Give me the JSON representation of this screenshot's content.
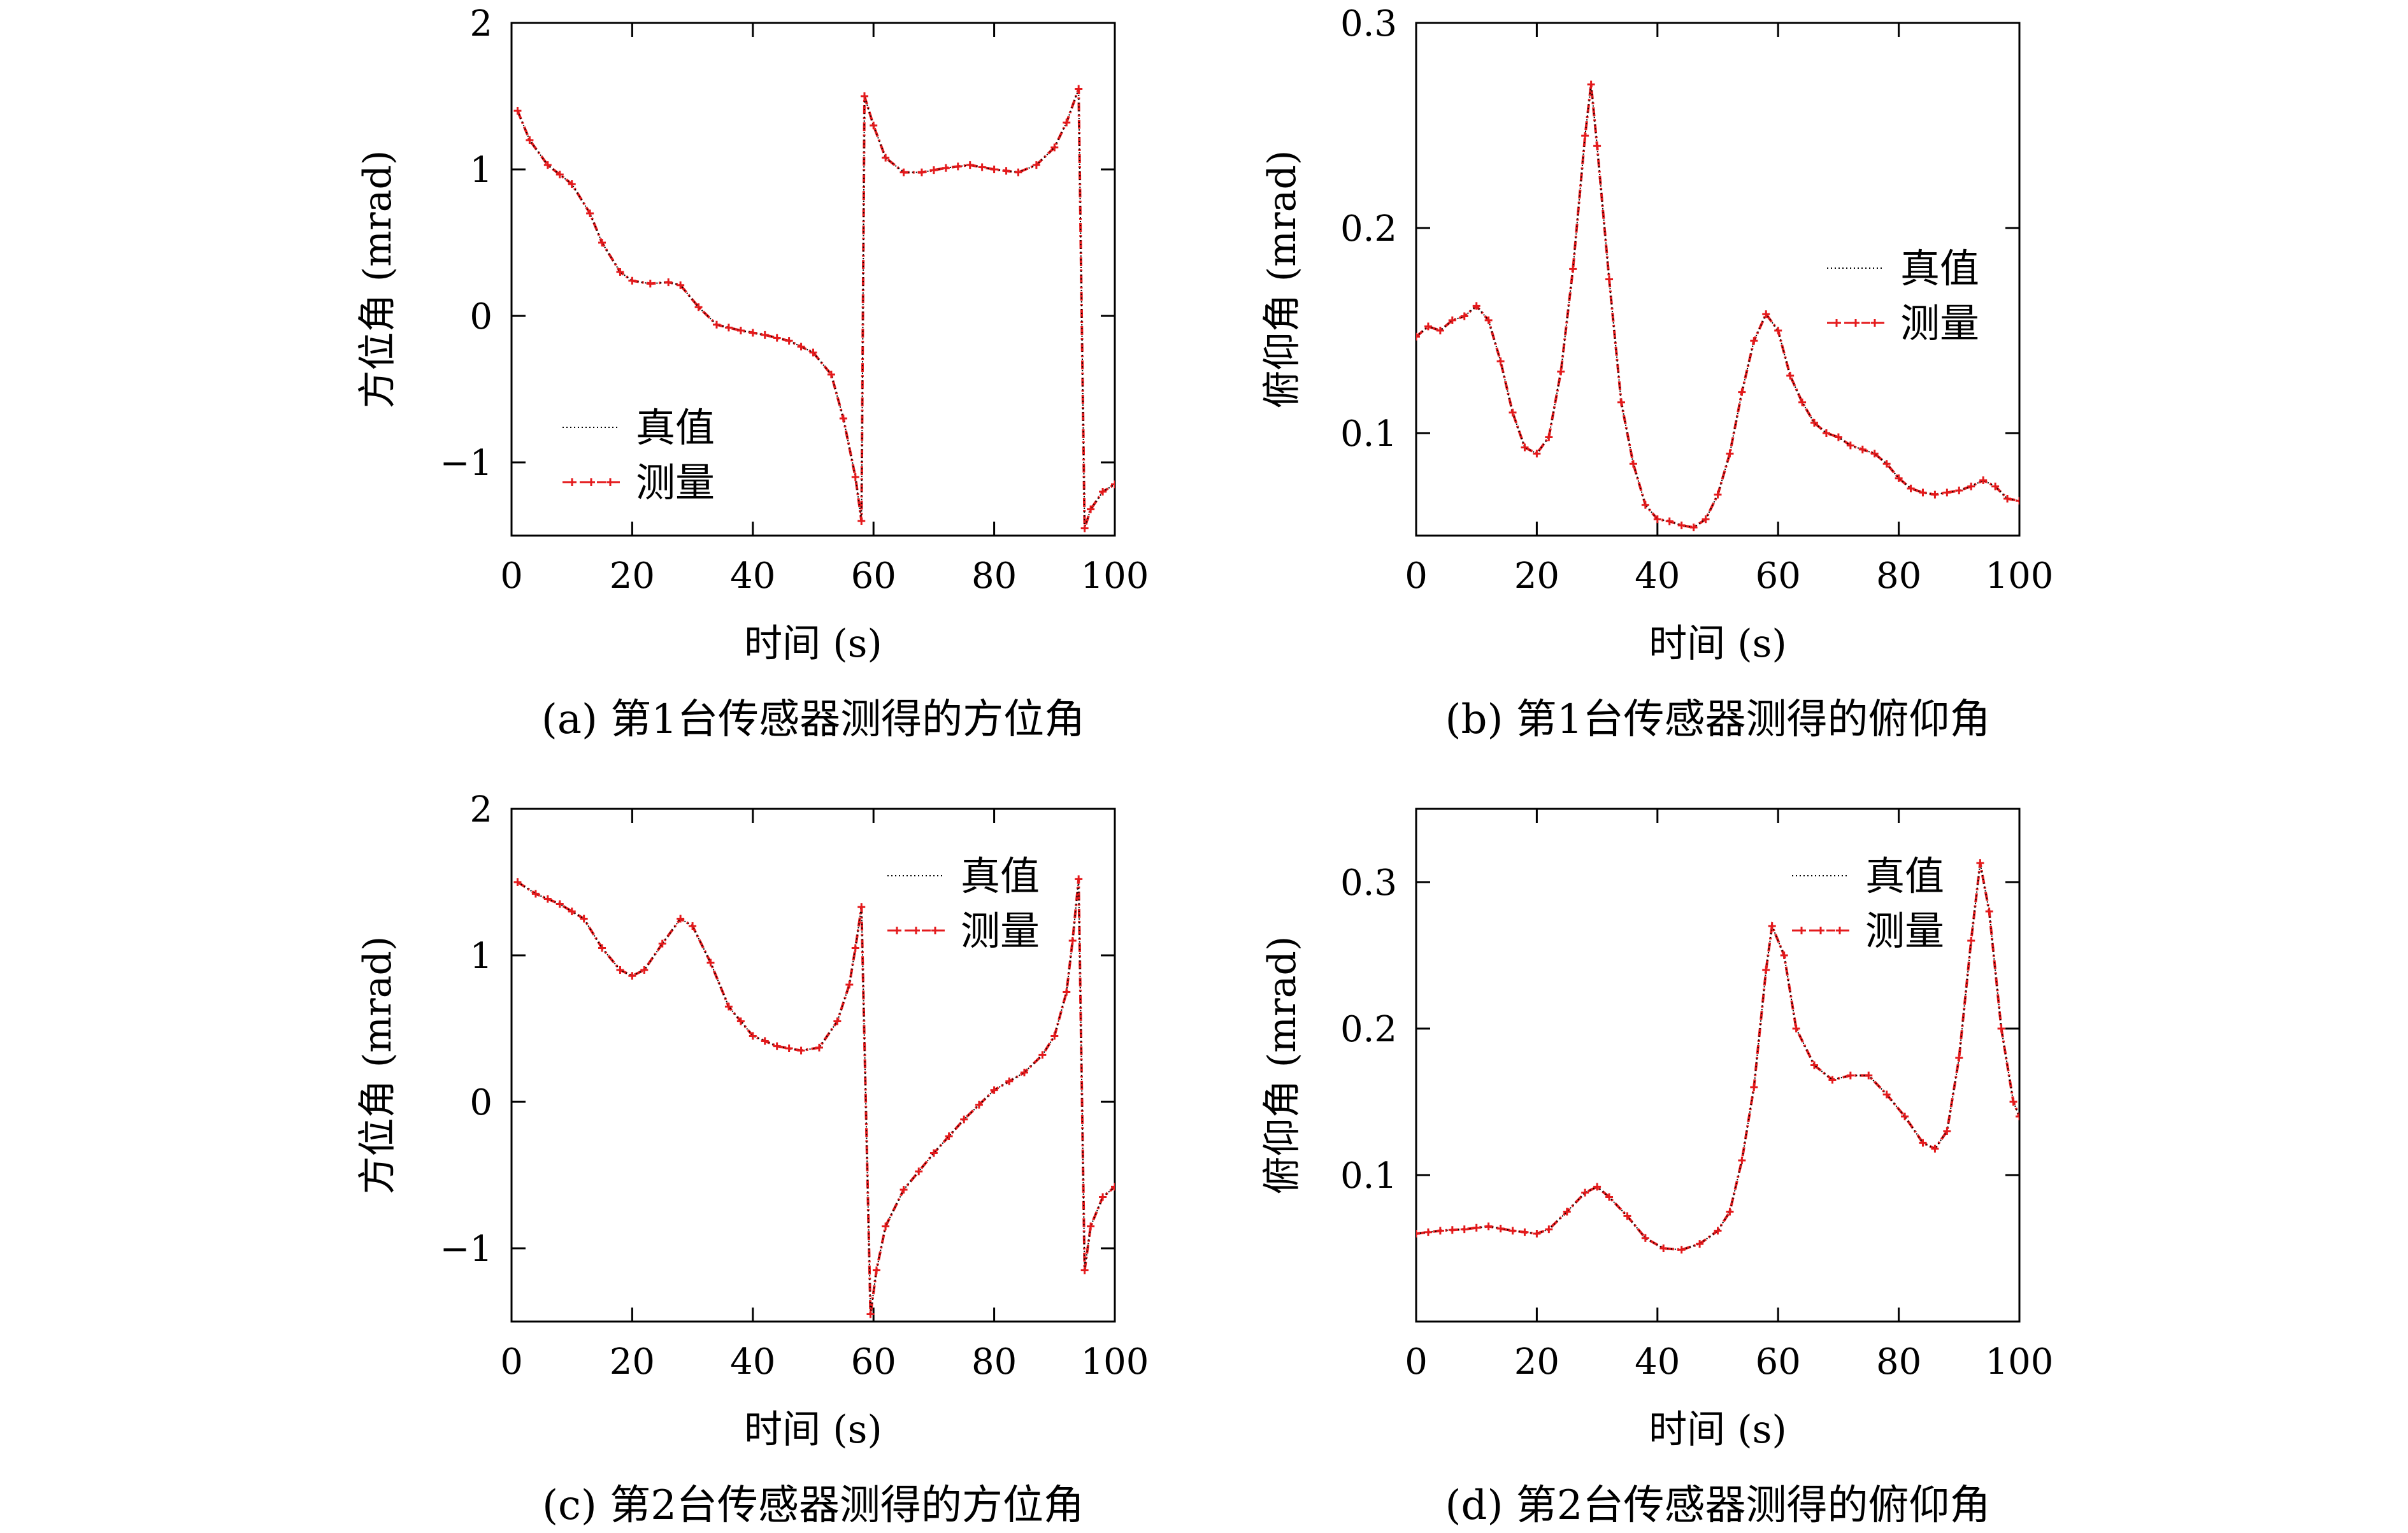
{
  "figure": {
    "series_names": [
      "真值",
      "测量"
    ],
    "colors": {
      "true_line": "#000000",
      "measured_line": "#e41a1c",
      "axes": "#000000"
    }
  },
  "chart_data": [
    {
      "type": "line",
      "caption": "(a) 第1台传感器测得的方位角",
      "xlabel": "时间 (s)",
      "ylabel": "方位角 (mrad)",
      "xlim": [
        0,
        100
      ],
      "ylim": [
        -1.5,
        2
      ],
      "xticks": [
        "0",
        "20",
        "40",
        "60",
        "80",
        "100"
      ],
      "yticks": [
        {
          "v": 2,
          "label": "2"
        },
        {
          "v": 1,
          "label": "1"
        },
        {
          "v": 0,
          "label": "0"
        },
        {
          "v": -1,
          "label": "−1"
        }
      ],
      "legend": "lower-left",
      "grid": false,
      "series": [
        {
          "name": "真值",
          "style": "dotted"
        },
        {
          "name": "测量",
          "style": "dash-dot-marker"
        }
      ],
      "points": [
        [
          1,
          1.4
        ],
        [
          3,
          1.2
        ],
        [
          6,
          1.03
        ],
        [
          10,
          0.9
        ],
        [
          13,
          0.7
        ],
        [
          15,
          0.5
        ],
        [
          18,
          0.3
        ],
        [
          20,
          0.24
        ],
        [
          23,
          0.22
        ],
        [
          26,
          0.23
        ],
        [
          28,
          0.21
        ],
        [
          31,
          0.06
        ],
        [
          34,
          -0.06
        ],
        [
          38,
          -0.1
        ],
        [
          42,
          -0.13
        ],
        [
          46,
          -0.17
        ],
        [
          50,
          -0.25
        ],
        [
          53,
          -0.4
        ],
        [
          55,
          -0.7
        ],
        [
          57,
          -1.1
        ],
        [
          58,
          -1.4
        ],
        [
          58.5,
          1.5
        ],
        [
          60,
          1.3
        ],
        [
          62,
          1.08
        ],
        [
          65,
          0.98
        ],
        [
          68,
          0.98
        ],
        [
          72,
          1.01
        ],
        [
          76,
          1.03
        ],
        [
          80,
          1.0
        ],
        [
          84,
          0.98
        ],
        [
          87,
          1.03
        ],
        [
          90,
          1.15
        ],
        [
          92,
          1.32
        ],
        [
          94,
          1.55
        ],
        [
          95,
          -1.45
        ],
        [
          96,
          -1.32
        ],
        [
          98,
          -1.2
        ],
        [
          100,
          -1.15
        ]
      ]
    },
    {
      "type": "line",
      "caption": "(b) 第1台传感器测得的俯仰角",
      "xlabel": "时间 (s)",
      "ylabel": "俯仰角 (mrad)",
      "xlim": [
        0,
        100
      ],
      "ylim": [
        0.05,
        0.3
      ],
      "xticks": [
        "0",
        "20",
        "40",
        "60",
        "80",
        "100"
      ],
      "yticks": [
        {
          "v": 0.3,
          "label": "0.3"
        },
        {
          "v": 0.2,
          "label": "0.2"
        },
        {
          "v": 0.1,
          "label": "0.1"
        }
      ],
      "legend": "right",
      "grid": false,
      "series": [
        {
          "name": "真值",
          "style": "dotted"
        },
        {
          "name": "测量",
          "style": "dash-dot-marker"
        }
      ],
      "points": [
        [
          0,
          0.147
        ],
        [
          2,
          0.152
        ],
        [
          4,
          0.15
        ],
        [
          6,
          0.155
        ],
        [
          8,
          0.157
        ],
        [
          10,
          0.162
        ],
        [
          12,
          0.155
        ],
        [
          14,
          0.135
        ],
        [
          16,
          0.11
        ],
        [
          18,
          0.093
        ],
        [
          20,
          0.09
        ],
        [
          22,
          0.098
        ],
        [
          24,
          0.13
        ],
        [
          26,
          0.18
        ],
        [
          28,
          0.245
        ],
        [
          29,
          0.27
        ],
        [
          30,
          0.24
        ],
        [
          32,
          0.175
        ],
        [
          34,
          0.115
        ],
        [
          36,
          0.085
        ],
        [
          38,
          0.065
        ],
        [
          40,
          0.058
        ],
        [
          42,
          0.057
        ],
        [
          44,
          0.055
        ],
        [
          46,
          0.054
        ],
        [
          48,
          0.058
        ],
        [
          50,
          0.07
        ],
        [
          52,
          0.09
        ],
        [
          54,
          0.12
        ],
        [
          56,
          0.145
        ],
        [
          58,
          0.158
        ],
        [
          60,
          0.15
        ],
        [
          62,
          0.128
        ],
        [
          64,
          0.115
        ],
        [
          66,
          0.105
        ],
        [
          68,
          0.1
        ],
        [
          70,
          0.098
        ],
        [
          72,
          0.094
        ],
        [
          74,
          0.092
        ],
        [
          76,
          0.09
        ],
        [
          78,
          0.085
        ],
        [
          80,
          0.078
        ],
        [
          82,
          0.073
        ],
        [
          84,
          0.071
        ],
        [
          86,
          0.07
        ],
        [
          88,
          0.071
        ],
        [
          90,
          0.072
        ],
        [
          92,
          0.074
        ],
        [
          94,
          0.077
        ],
        [
          96,
          0.074
        ],
        [
          98,
          0.068
        ],
        [
          100,
          0.067
        ]
      ]
    },
    {
      "type": "line",
      "caption": "(c) 第2台传感器测得的方位角",
      "xlabel": "时间 (s)",
      "ylabel": "方位角 (mrad)",
      "xlim": [
        0,
        100
      ],
      "ylim": [
        -1.5,
        2
      ],
      "xticks": [
        "0",
        "20",
        "40",
        "60",
        "80",
        "100"
      ],
      "yticks": [
        {
          "v": 2,
          "label": "2"
        },
        {
          "v": 1,
          "label": "1"
        },
        {
          "v": 0,
          "label": "0"
        },
        {
          "v": -1,
          "label": "−1"
        }
      ],
      "legend": "top-right",
      "grid": false,
      "series": [
        {
          "name": "真值",
          "style": "dotted"
        },
        {
          "name": "测量",
          "style": "dash-dot-marker"
        }
      ],
      "points": [
        [
          1,
          1.5
        ],
        [
          4,
          1.42
        ],
        [
          8,
          1.35
        ],
        [
          12,
          1.25
        ],
        [
          15,
          1.05
        ],
        [
          18,
          0.9
        ],
        [
          20,
          0.86
        ],
        [
          22,
          0.9
        ],
        [
          25,
          1.08
        ],
        [
          28,
          1.25
        ],
        [
          30,
          1.2
        ],
        [
          33,
          0.95
        ],
        [
          36,
          0.65
        ],
        [
          40,
          0.45
        ],
        [
          44,
          0.38
        ],
        [
          48,
          0.35
        ],
        [
          51,
          0.37
        ],
        [
          54,
          0.55
        ],
        [
          56,
          0.8
        ],
        [
          57,
          1.05
        ],
        [
          58,
          1.33
        ],
        [
          59.5,
          -1.45
        ],
        [
          60.5,
          -1.15
        ],
        [
          62,
          -0.85
        ],
        [
          65,
          -0.6
        ],
        [
          70,
          -0.35
        ],
        [
          75,
          -0.12
        ],
        [
          80,
          0.08
        ],
        [
          85,
          0.2
        ],
        [
          88,
          0.32
        ],
        [
          90,
          0.45
        ],
        [
          92,
          0.75
        ],
        [
          93,
          1.1
        ],
        [
          94,
          1.52
        ],
        [
          95,
          -1.15
        ],
        [
          96,
          -0.85
        ],
        [
          98,
          -0.65
        ],
        [
          100,
          -0.58
        ]
      ]
    },
    {
      "type": "line",
      "caption": "(d) 第2台传感器测得的俯仰角",
      "xlabel": "时间 (s)",
      "ylabel": "俯仰角 (mrad)",
      "xlim": [
        0,
        100
      ],
      "ylim": [
        0,
        0.35
      ],
      "xticks": [
        "0",
        "20",
        "40",
        "60",
        "80",
        "100"
      ],
      "yticks": [
        {
          "v": 0.3,
          "label": "0.3"
        },
        {
          "v": 0.2,
          "label": "0.2"
        },
        {
          "v": 0.1,
          "label": "0.1"
        }
      ],
      "legend": "top-right",
      "grid": false,
      "series": [
        {
          "name": "真值",
          "style": "dotted"
        },
        {
          "name": "测量",
          "style": "dash-dot-marker"
        }
      ],
      "points": [
        [
          0,
          0.06
        ],
        [
          4,
          0.062
        ],
        [
          8,
          0.063
        ],
        [
          12,
          0.065
        ],
        [
          16,
          0.062
        ],
        [
          20,
          0.06
        ],
        [
          22,
          0.063
        ],
        [
          25,
          0.075
        ],
        [
          28,
          0.088
        ],
        [
          30,
          0.092
        ],
        [
          32,
          0.085
        ],
        [
          35,
          0.072
        ],
        [
          38,
          0.057
        ],
        [
          41,
          0.05
        ],
        [
          44,
          0.049
        ],
        [
          47,
          0.053
        ],
        [
          50,
          0.062
        ],
        [
          52,
          0.075
        ],
        [
          54,
          0.11
        ],
        [
          56,
          0.16
        ],
        [
          58,
          0.24
        ],
        [
          59,
          0.27
        ],
        [
          61,
          0.25
        ],
        [
          63,
          0.2
        ],
        [
          66,
          0.175
        ],
        [
          69,
          0.165
        ],
        [
          72,
          0.168
        ],
        [
          75,
          0.168
        ],
        [
          78,
          0.155
        ],
        [
          81,
          0.14
        ],
        [
          84,
          0.122
        ],
        [
          86,
          0.118
        ],
        [
          88,
          0.13
        ],
        [
          90,
          0.18
        ],
        [
          92,
          0.26
        ],
        [
          93.5,
          0.313
        ],
        [
          95,
          0.28
        ],
        [
          97,
          0.2
        ],
        [
          99,
          0.15
        ],
        [
          100,
          0.14
        ]
      ]
    }
  ]
}
